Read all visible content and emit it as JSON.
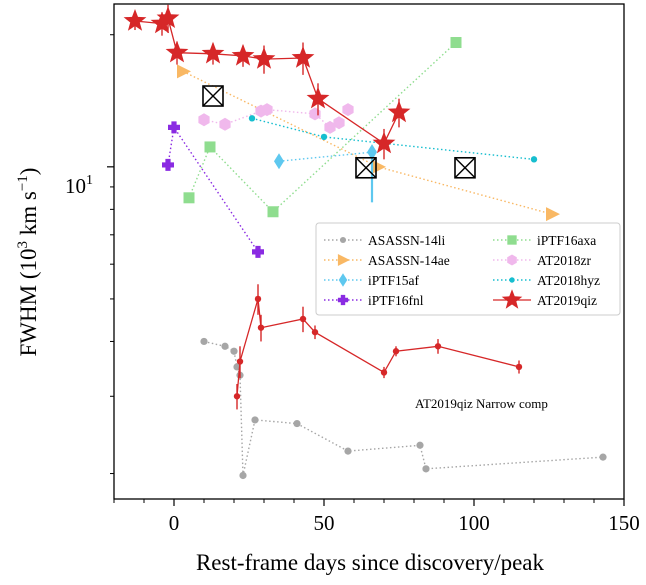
{
  "chart_data": {
    "type": "scatter",
    "xlabel": "Rest-frame days since discovery/peak",
    "ylabel": "FWHM (10",
    "ylabel_exp": "3",
    "ylabel_unit": " km s",
    "ylabel_unit_exp": "−1",
    "ylabel_close": ")",
    "xlim": [
      -20,
      150
    ],
    "ylim": [
      1.75,
      23.5
    ],
    "yscale": "log",
    "xticks": [
      0,
      50,
      100,
      150
    ],
    "xtick_labels": [
      "0",
      "50",
      "100",
      "150"
    ],
    "yticks": [
      10
    ],
    "ytick_label_base": "10",
    "ytick_label_exp": "1",
    "legend_position": "center-right",
    "annotation": {
      "text": "AT2019qiz Narrow comp",
      "x": 80,
      "y": 2.4
    },
    "series": [
      {
        "name": "ASASSN-14li",
        "color": "#a6a6a6",
        "marker": "circle",
        "line": "dotted",
        "x": [
          10,
          17,
          20,
          21,
          22,
          23,
          27,
          41,
          58,
          82,
          84,
          143
        ],
        "y": [
          4.0,
          3.9,
          3.8,
          3.5,
          3.35,
          1.98,
          2.65,
          2.6,
          2.25,
          2.32,
          2.05,
          2.18
        ]
      },
      {
        "name": "ASASSN-14ae",
        "color": "#f9b864",
        "marker": "triangle-right",
        "line": "dotted",
        "x": [
          3,
          68,
          126
        ],
        "y": [
          16.5,
          10.0,
          7.8
        ]
      },
      {
        "name": "iPTF15af",
        "color": "#5ec8ef",
        "marker": "diamond",
        "line": "dotted",
        "x": [
          35,
          66
        ],
        "y": [
          10.3,
          10.8
        ],
        "yerr": [
          [
            0.3,
            0.3
          ],
          [
            2.5,
            0.3
          ]
        ]
      },
      {
        "name": "iPTF16fnl",
        "color": "#8a2be2",
        "marker": "plus",
        "line": "dotted",
        "x": [
          -2,
          0,
          28
        ],
        "y": [
          10.1,
          12.3,
          6.4
        ]
      },
      {
        "name": "iPTF16axa",
        "color": "#8fdd8f",
        "marker": "square",
        "line": "dotted",
        "x": [
          5,
          12,
          33,
          94
        ],
        "y": [
          8.5,
          11.1,
          7.9,
          19.2
        ]
      },
      {
        "name": "AT2018zr",
        "color": "#f0b8ec",
        "marker": "hexagon",
        "line": "dotted",
        "x": [
          10,
          17,
          29,
          31,
          47,
          52,
          55,
          58
        ],
        "y": [
          12.8,
          12.5,
          13.4,
          13.5,
          13.2,
          12.3,
          12.6,
          13.5
        ]
      },
      {
        "name": "AT2018hyz",
        "color": "#17becf",
        "marker": "dot",
        "line": "dotted",
        "x": [
          26,
          50,
          120
        ],
        "y": [
          12.9,
          11.7,
          10.4
        ]
      },
      {
        "name": "AT2019qiz",
        "color": "#d62728",
        "marker": "star",
        "line": "solid",
        "x": [
          -13,
          -4,
          -2,
          1,
          13,
          23,
          30,
          43,
          48,
          70,
          75
        ],
        "y": [
          21.5,
          21.2,
          21.8,
          18.2,
          18.1,
          17.9,
          17.6,
          17.7,
          14.3,
          11.3,
          13.3
        ],
        "yerr": [
          1.0,
          1.3,
          1.6,
          1.1,
          1.0,
          1.0,
          1.3,
          1.5,
          1.2,
          0.9,
          1.0
        ]
      },
      {
        "name": "",
        "color": "#d62728",
        "marker": "dot",
        "line": "solid",
        "x": [
          21,
          22,
          28,
          29,
          43,
          47,
          70,
          74,
          88,
          115
        ],
        "y": [
          3.0,
          3.6,
          5.0,
          4.3,
          4.5,
          4.2,
          3.4,
          3.8,
          3.9,
          3.5
        ],
        "yerr": [
          0.2,
          0.3,
          0.4,
          0.3,
          0.3,
          0.15,
          0.1,
          0.1,
          0.15,
          0.12
        ]
      },
      {
        "name": "",
        "color": "#000000",
        "marker": "box-x",
        "line": "none",
        "x": [
          13,
          64,
          97
        ],
        "y": [
          14.5,
          9.95,
          9.95
        ]
      }
    ]
  }
}
